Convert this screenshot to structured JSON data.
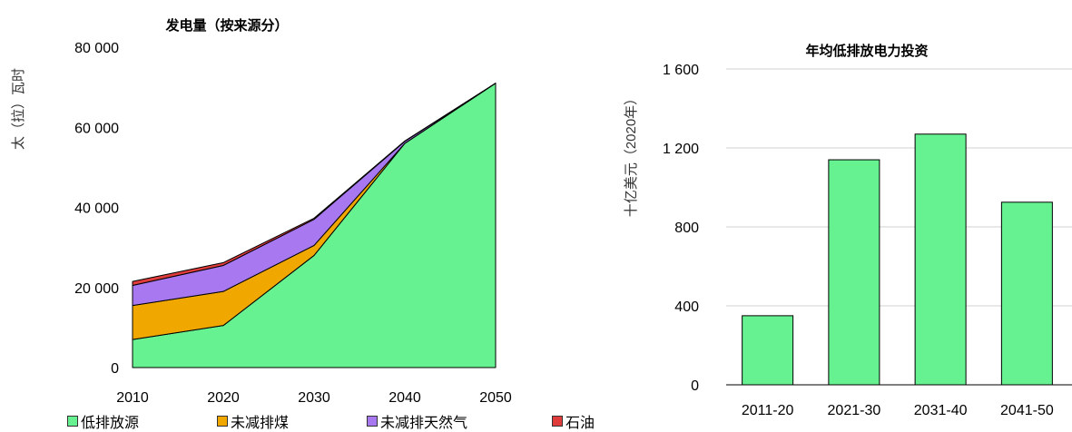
{
  "chart_data": [
    {
      "type": "area",
      "title": "发电量（按来源分）",
      "ylabel": "太（拉）瓦时",
      "x": [
        2010,
        2020,
        2030,
        2040,
        2050
      ],
      "x_tick_labels": [
        "2010",
        "2020",
        "2030",
        "2040",
        "2050"
      ],
      "y_tick_labels": [
        "0",
        "20 000",
        "40 000",
        "60 000",
        "80 000"
      ],
      "ylim": [
        0,
        80000
      ],
      "stacked": true,
      "grid": false,
      "legend_position": "bottom",
      "series": [
        {
          "name": "低排放源",
          "color": "#66F290",
          "values": [
            7000,
            10500,
            28000,
            56000,
            71000
          ]
        },
        {
          "name": "未减排煤",
          "color": "#F0A800",
          "values": [
            8500,
            8500,
            2500,
            0,
            0
          ]
        },
        {
          "name": "未减排天然气",
          "color": "#A878F0",
          "values": [
            5000,
            6500,
            6500,
            500,
            0
          ]
        },
        {
          "name": "石油",
          "color": "#E03C3C",
          "values": [
            1000,
            700,
            300,
            100,
            0
          ]
        }
      ]
    },
    {
      "type": "bar",
      "title": "年均低排放电力投资",
      "ylabel": "十亿美元（2020年）",
      "categories": [
        "2011-20",
        "2021-30",
        "2031-40",
        "2041-50"
      ],
      "values": [
        350,
        1140,
        1270,
        925
      ],
      "y_tick_labels": [
        "0",
        "400",
        "800",
        "1 200",
        "1 600"
      ],
      "ylim": [
        0,
        1600
      ],
      "grid": true,
      "bar_color": "#66F290"
    }
  ]
}
